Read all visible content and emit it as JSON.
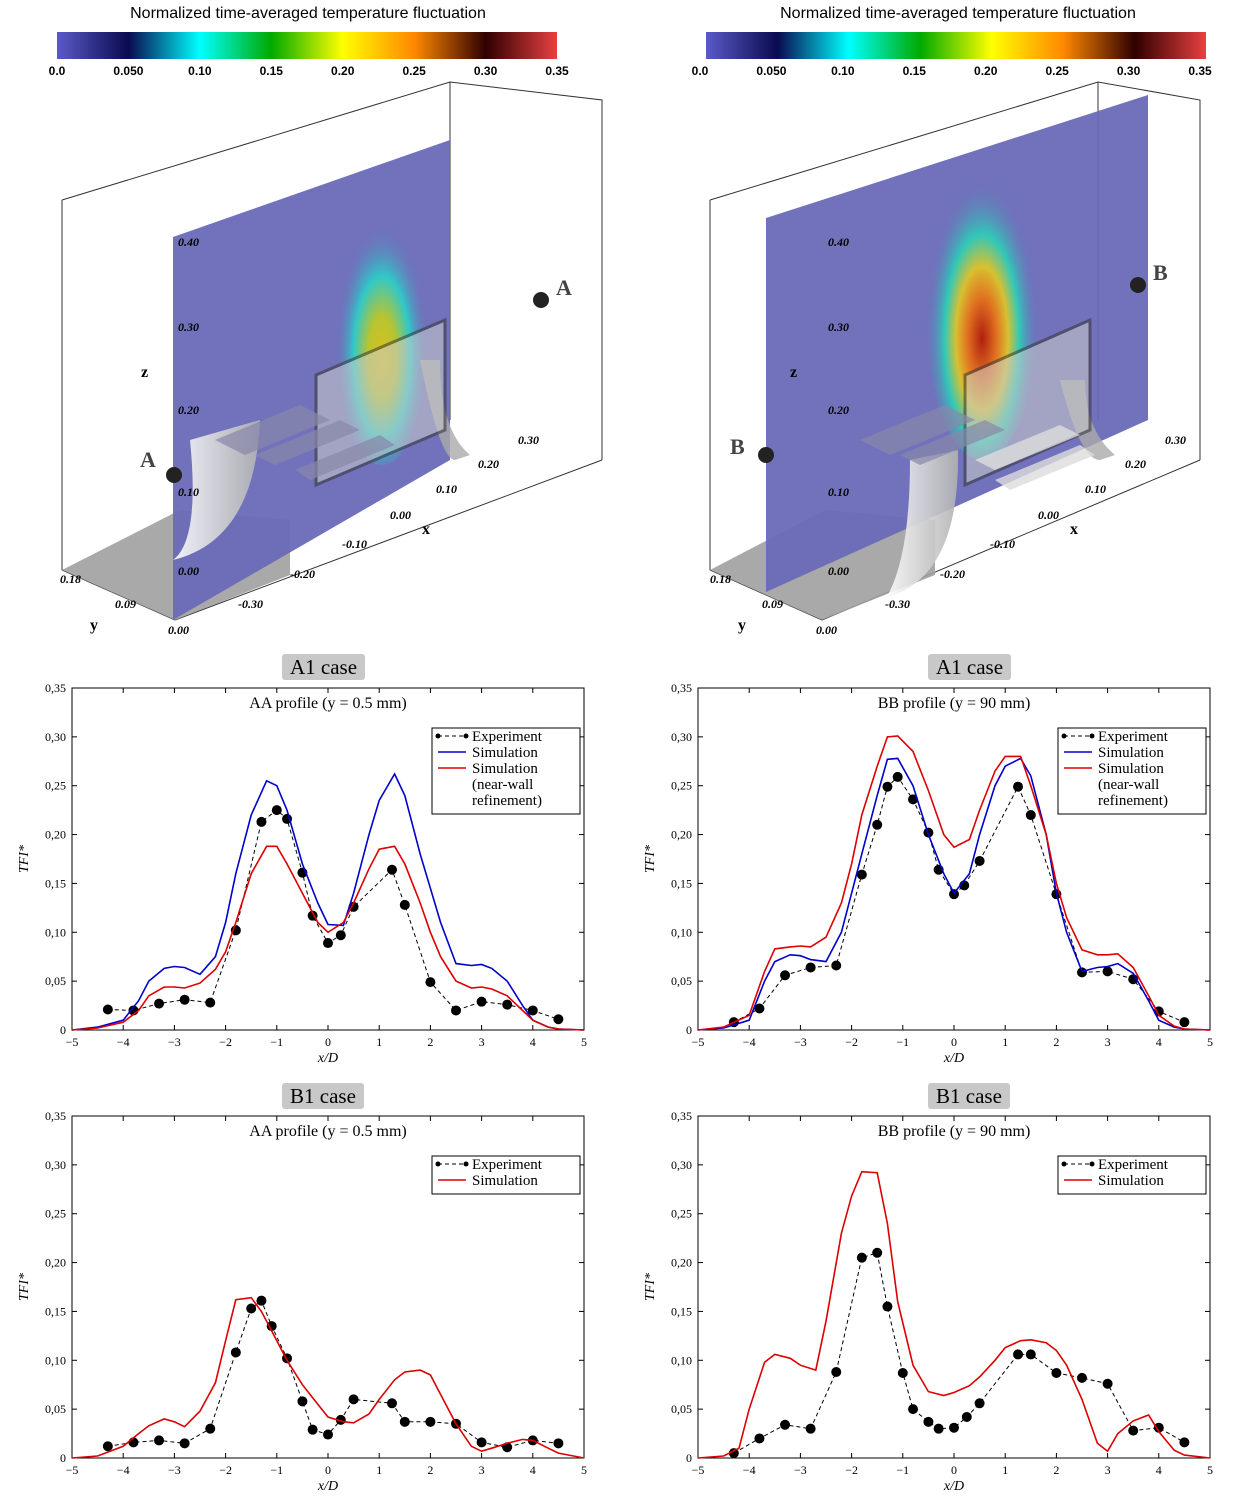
{
  "colorbar": {
    "title": "Normalized time-averaged temperature fluctuation",
    "ticks": [
      "0.0",
      "0.050",
      "0.10",
      "0.15",
      "0.20",
      "0.25",
      "0.30",
      "0.35"
    ],
    "colors": [
      "#5a5ac8",
      "#0a0a50",
      "#00ffff",
      "#00aa00",
      "#ffff00",
      "#ff8800",
      "#300000",
      "#e84040"
    ]
  },
  "panels3d": [
    {
      "axis_x": "x",
      "axis_y": "y",
      "axis_z": "z",
      "z_ticks": [
        "0.40",
        "0.30",
        "0.20",
        "0.10",
        "0.00"
      ],
      "x_ticks": [
        "0.30",
        "0.20",
        "0.10",
        "0.00",
        "-0.10",
        "-0.20",
        "-0.30"
      ],
      "y_ticks": [
        "0.18",
        "0.09",
        "0.00"
      ],
      "point_label": "A"
    },
    {
      "axis_x": "x",
      "axis_y": "y",
      "axis_z": "z",
      "z_ticks": [
        "0.40",
        "0.30",
        "0.20",
        "0.10",
        "0.00"
      ],
      "x_ticks": [
        "0.30",
        "0.20",
        "0.10",
        "0.00",
        "-0.10",
        "-0.20",
        "-0.30"
      ],
      "y_ticks": [
        "0.18",
        "0.09",
        "0.00"
      ],
      "point_label": "B"
    }
  ],
  "case_labels": [
    "A1 case",
    "A1 case",
    "B1 case",
    "B1 case"
  ],
  "chart_data": [
    {
      "type": "line",
      "title": "AA profile (y = 0.5 mm)",
      "xlabel": "x/D",
      "ylabel": "TFI*",
      "xlim": [
        -5,
        5
      ],
      "ylim": [
        0,
        0.35
      ],
      "xticks": [
        "−5",
        "−4",
        "−3",
        "−2",
        "−1",
        "0",
        "1",
        "2",
        "3",
        "4",
        "5"
      ],
      "yticks": [
        "0",
        "0,05",
        "0,10",
        "0,15",
        "0,20",
        "0,25",
        "0,30",
        "0,35"
      ],
      "legend_position": "top-right",
      "series": [
        {
          "name": "Experiment",
          "style": "dashed-dots",
          "color": "#000000",
          "x": [
            -4.3,
            -3.8,
            -3.3,
            -2.8,
            -2.3,
            -1.8,
            -1.3,
            -1.0,
            -0.8,
            -0.5,
            -0.3,
            0.0,
            0.25,
            0.5,
            1.25,
            1.5,
            2.0,
            2.5,
            3.0,
            3.5,
            4.0,
            4.5
          ],
          "y": [
            0.021,
            0.02,
            0.027,
            0.031,
            0.028,
            0.102,
            0.213,
            0.225,
            0.216,
            0.161,
            0.117,
            0.089,
            0.097,
            0.126,
            0.164,
            0.128,
            0.049,
            0.02,
            0.029,
            0.026,
            0.02,
            0.011
          ]
        },
        {
          "name": "Simulation",
          "style": "solid",
          "color": "#0000cc",
          "x": [
            -5,
            -4.5,
            -4,
            -3.7,
            -3.5,
            -3.2,
            -3,
            -2.8,
            -2.5,
            -2.2,
            -2,
            -1.8,
            -1.5,
            -1.2,
            -1,
            -0.8,
            -0.5,
            -0.2,
            0,
            0.3,
            0.5,
            0.8,
            1,
            1.3,
            1.5,
            1.8,
            2,
            2.2,
            2.5,
            2.8,
            3,
            3.2,
            3.5,
            3.8,
            4,
            4.3,
            4.5,
            5
          ],
          "y": [
            0,
            0.003,
            0.01,
            0.03,
            0.05,
            0.063,
            0.065,
            0.064,
            0.057,
            0.075,
            0.11,
            0.16,
            0.22,
            0.255,
            0.25,
            0.225,
            0.17,
            0.13,
            0.108,
            0.107,
            0.14,
            0.2,
            0.235,
            0.262,
            0.24,
            0.18,
            0.145,
            0.11,
            0.068,
            0.066,
            0.067,
            0.063,
            0.05,
            0.025,
            0.01,
            0.003,
            0.001,
            0
          ]
        },
        {
          "name": "Simulation (near-wall refinement)",
          "style": "solid",
          "color": "#dd0000",
          "x": [
            -5,
            -4.5,
            -4,
            -3.7,
            -3.5,
            -3.2,
            -3,
            -2.8,
            -2.5,
            -2.2,
            -2,
            -1.8,
            -1.5,
            -1.2,
            -1,
            -0.8,
            -0.5,
            -0.2,
            0,
            0.3,
            0.5,
            0.8,
            1,
            1.3,
            1.5,
            1.8,
            2,
            2.2,
            2.5,
            2.8,
            3,
            3.2,
            3.5,
            3.8,
            4,
            4.3,
            4.5,
            5
          ],
          "y": [
            0,
            0.002,
            0.008,
            0.02,
            0.035,
            0.044,
            0.044,
            0.043,
            0.048,
            0.062,
            0.08,
            0.11,
            0.16,
            0.188,
            0.188,
            0.17,
            0.14,
            0.11,
            0.1,
            0.11,
            0.13,
            0.165,
            0.185,
            0.188,
            0.17,
            0.13,
            0.1,
            0.075,
            0.05,
            0.043,
            0.044,
            0.042,
            0.035,
            0.02,
            0.01,
            0.003,
            0.001,
            0
          ]
        }
      ],
      "legend_lines": [
        "Experiment",
        "Simulation",
        "Simulation",
        "(near-wall",
        "refinement)"
      ]
    },
    {
      "type": "line",
      "title": "BB profile (y = 90 mm)",
      "xlabel": "x/D",
      "ylabel": "TFI*",
      "xlim": [
        -5,
        5
      ],
      "ylim": [
        0,
        0.35
      ],
      "xticks": [
        "−5",
        "−4",
        "−3",
        "−2",
        "−1",
        "0",
        "1",
        "2",
        "3",
        "4",
        "5"
      ],
      "yticks": [
        "0",
        "0,05",
        "0,10",
        "0,15",
        "0,20",
        "0,25",
        "0,30",
        "0,35"
      ],
      "legend_position": "top-right",
      "series": [
        {
          "name": "Experiment",
          "style": "dashed-dots",
          "color": "#000000",
          "x": [
            -4.3,
            -3.8,
            -3.3,
            -2.8,
            -2.3,
            -1.8,
            -1.5,
            -1.3,
            -1.1,
            -0.8,
            -0.5,
            -0.3,
            0.0,
            0.2,
            0.5,
            1.25,
            1.5,
            2.0,
            2.5,
            3.0,
            3.5,
            4.0,
            4.5
          ],
          "y": [
            0.008,
            0.022,
            0.056,
            0.064,
            0.066,
            0.159,
            0.21,
            0.249,
            0.259,
            0.236,
            0.202,
            0.164,
            0.139,
            0.148,
            0.173,
            0.249,
            0.22,
            0.139,
            0.059,
            0.06,
            0.052,
            0.019,
            0.008
          ]
        },
        {
          "name": "Simulation",
          "style": "solid",
          "color": "#0000cc",
          "x": [
            -5,
            -4.5,
            -4,
            -3.7,
            -3.5,
            -3.2,
            -3,
            -2.8,
            -2.5,
            -2.2,
            -2,
            -1.8,
            -1.5,
            -1.3,
            -1.1,
            -0.8,
            -0.5,
            -0.2,
            0,
            0.3,
            0.5,
            0.8,
            1,
            1.3,
            1.5,
            1.8,
            2,
            2.2,
            2.5,
            2.8,
            3,
            3.2,
            3.5,
            3.8,
            4,
            4.3,
            4.5,
            5
          ],
          "y": [
            0,
            0.002,
            0.01,
            0.05,
            0.07,
            0.077,
            0.076,
            0.072,
            0.07,
            0.1,
            0.14,
            0.18,
            0.24,
            0.277,
            0.278,
            0.25,
            0.2,
            0.16,
            0.14,
            0.16,
            0.2,
            0.25,
            0.27,
            0.278,
            0.26,
            0.2,
            0.14,
            0.1,
            0.06,
            0.064,
            0.065,
            0.068,
            0.058,
            0.03,
            0.01,
            0.003,
            0.001,
            0
          ]
        },
        {
          "name": "Simulation (near-wall refinement)",
          "style": "solid",
          "color": "#dd0000",
          "x": [
            -5,
            -4.5,
            -4,
            -3.7,
            -3.5,
            -3.2,
            -3,
            -2.8,
            -2.5,
            -2.2,
            -2,
            -1.8,
            -1.5,
            -1.3,
            -1.1,
            -0.8,
            -0.5,
            -0.2,
            0,
            0.3,
            0.5,
            0.8,
            1,
            1.3,
            1.5,
            1.8,
            2,
            2.2,
            2.5,
            2.8,
            3,
            3.2,
            3.5,
            3.8,
            4,
            4.3,
            4.5,
            5
          ],
          "y": [
            0,
            0.003,
            0.015,
            0.06,
            0.083,
            0.085,
            0.086,
            0.085,
            0.095,
            0.13,
            0.17,
            0.22,
            0.27,
            0.3,
            0.301,
            0.285,
            0.245,
            0.2,
            0.187,
            0.195,
            0.225,
            0.265,
            0.28,
            0.28,
            0.25,
            0.2,
            0.15,
            0.115,
            0.082,
            0.077,
            0.077,
            0.078,
            0.064,
            0.035,
            0.015,
            0.004,
            0.001,
            0
          ]
        }
      ],
      "legend_lines": [
        "Experiment",
        "Simulation",
        "Simulation",
        "(near-wall",
        "refinement)"
      ]
    },
    {
      "type": "line",
      "title": "AA profile (y = 0.5 mm)",
      "xlabel": "x/D",
      "ylabel": "TFI*",
      "xlim": [
        -5,
        5
      ],
      "ylim": [
        0,
        0.35
      ],
      "xticks": [
        "−5",
        "−4",
        "−3",
        "−2",
        "−1",
        "0",
        "1",
        "2",
        "3",
        "4",
        "5"
      ],
      "yticks": [
        "0",
        "0,05",
        "0,10",
        "0,15",
        "0,20",
        "0,25",
        "0,30",
        "0,35"
      ],
      "legend_position": "top-right",
      "series": [
        {
          "name": "Experiment",
          "style": "dashed-dots",
          "color": "#000000",
          "x": [
            -4.3,
            -3.8,
            -3.3,
            -2.8,
            -2.3,
            -1.8,
            -1.5,
            -1.3,
            -1.1,
            -0.8,
            -0.5,
            -0.3,
            0.0,
            0.25,
            0.5,
            1.25,
            1.5,
            2.0,
            2.5,
            3.0,
            3.5,
            4.0,
            4.5
          ],
          "y": [
            0.012,
            0.016,
            0.018,
            0.015,
            0.03,
            0.108,
            0.153,
            0.161,
            0.135,
            0.102,
            0.058,
            0.029,
            0.024,
            0.039,
            0.06,
            0.056,
            0.037,
            0.037,
            0.035,
            0.016,
            0.011,
            0.018,
            0.015
          ]
        },
        {
          "name": "Simulation",
          "style": "solid",
          "color": "#dd0000",
          "x": [
            -5,
            -4.5,
            -4,
            -3.7,
            -3.5,
            -3.2,
            -3,
            -2.8,
            -2.5,
            -2.2,
            -2,
            -1.8,
            -1.5,
            -1.3,
            -1.1,
            -0.8,
            -0.5,
            -0.2,
            0,
            0.3,
            0.5,
            0.8,
            1,
            1.3,
            1.5,
            1.8,
            2,
            2.2,
            2.5,
            2.8,
            3,
            3.2,
            3.5,
            3.8,
            4,
            4.3,
            4.5,
            5
          ],
          "y": [
            0,
            0.002,
            0.012,
            0.025,
            0.033,
            0.04,
            0.037,
            0.032,
            0.048,
            0.077,
            0.12,
            0.162,
            0.164,
            0.15,
            0.13,
            0.1,
            0.075,
            0.055,
            0.042,
            0.037,
            0.036,
            0.045,
            0.06,
            0.08,
            0.088,
            0.09,
            0.085,
            0.065,
            0.035,
            0.012,
            0.007,
            0.01,
            0.015,
            0.019,
            0.018,
            0.01,
            0.005,
            0
          ]
        }
      ],
      "legend_lines": [
        "Experiment",
        "Simulation"
      ]
    },
    {
      "type": "line",
      "title": "BB profile (y = 90 mm)",
      "xlabel": "x/D",
      "ylabel": "TFI*",
      "xlim": [
        -5,
        5
      ],
      "ylim": [
        0,
        0.35
      ],
      "xticks": [
        "−5",
        "−4",
        "−3",
        "−2",
        "−1",
        "0",
        "1",
        "2",
        "3",
        "4",
        "5"
      ],
      "yticks": [
        "0",
        "0,05",
        "0,10",
        "0,15",
        "0,20",
        "0,25",
        "0,30",
        "0,35"
      ],
      "legend_position": "top-right",
      "series": [
        {
          "name": "Experiment",
          "style": "dashed-dots",
          "color": "#000000",
          "x": [
            -4.3,
            -3.8,
            -3.3,
            -2.8,
            -2.3,
            -1.8,
            -1.5,
            -1.3,
            -1.0,
            -0.8,
            -0.5,
            -0.3,
            0.0,
            0.25,
            0.5,
            1.25,
            1.5,
            2.0,
            2.5,
            3.0,
            3.5,
            4.0,
            4.5
          ],
          "y": [
            0.005,
            0.02,
            0.034,
            0.03,
            0.088,
            0.205,
            0.21,
            0.155,
            0.087,
            0.05,
            0.037,
            0.03,
            0.031,
            0.042,
            0.056,
            0.106,
            0.106,
            0.087,
            0.082,
            0.076,
            0.028,
            0.031,
            0.016
          ]
        },
        {
          "name": "Simulation",
          "style": "solid",
          "color": "#dd0000",
          "x": [
            -5,
            -4.5,
            -4.2,
            -4,
            -3.7,
            -3.5,
            -3.2,
            -3,
            -2.7,
            -2.5,
            -2.2,
            -2,
            -1.8,
            -1.5,
            -1.3,
            -1.1,
            -0.8,
            -0.5,
            -0.2,
            0,
            0.3,
            0.5,
            0.8,
            1,
            1.3,
            1.5,
            1.8,
            2,
            2.2,
            2.5,
            2.8,
            3,
            3.2,
            3.5,
            3.8,
            4,
            4.3,
            4.5,
            5
          ],
          "y": [
            0,
            0.002,
            0.01,
            0.05,
            0.098,
            0.106,
            0.102,
            0.095,
            0.09,
            0.14,
            0.23,
            0.268,
            0.293,
            0.292,
            0.24,
            0.16,
            0.095,
            0.068,
            0.064,
            0.067,
            0.074,
            0.083,
            0.1,
            0.113,
            0.12,
            0.121,
            0.118,
            0.11,
            0.095,
            0.06,
            0.015,
            0.007,
            0.025,
            0.038,
            0.044,
            0.027,
            0.008,
            0.003,
            0
          ]
        }
      ],
      "legend_lines": [
        "Experiment",
        "Simulation"
      ]
    }
  ]
}
